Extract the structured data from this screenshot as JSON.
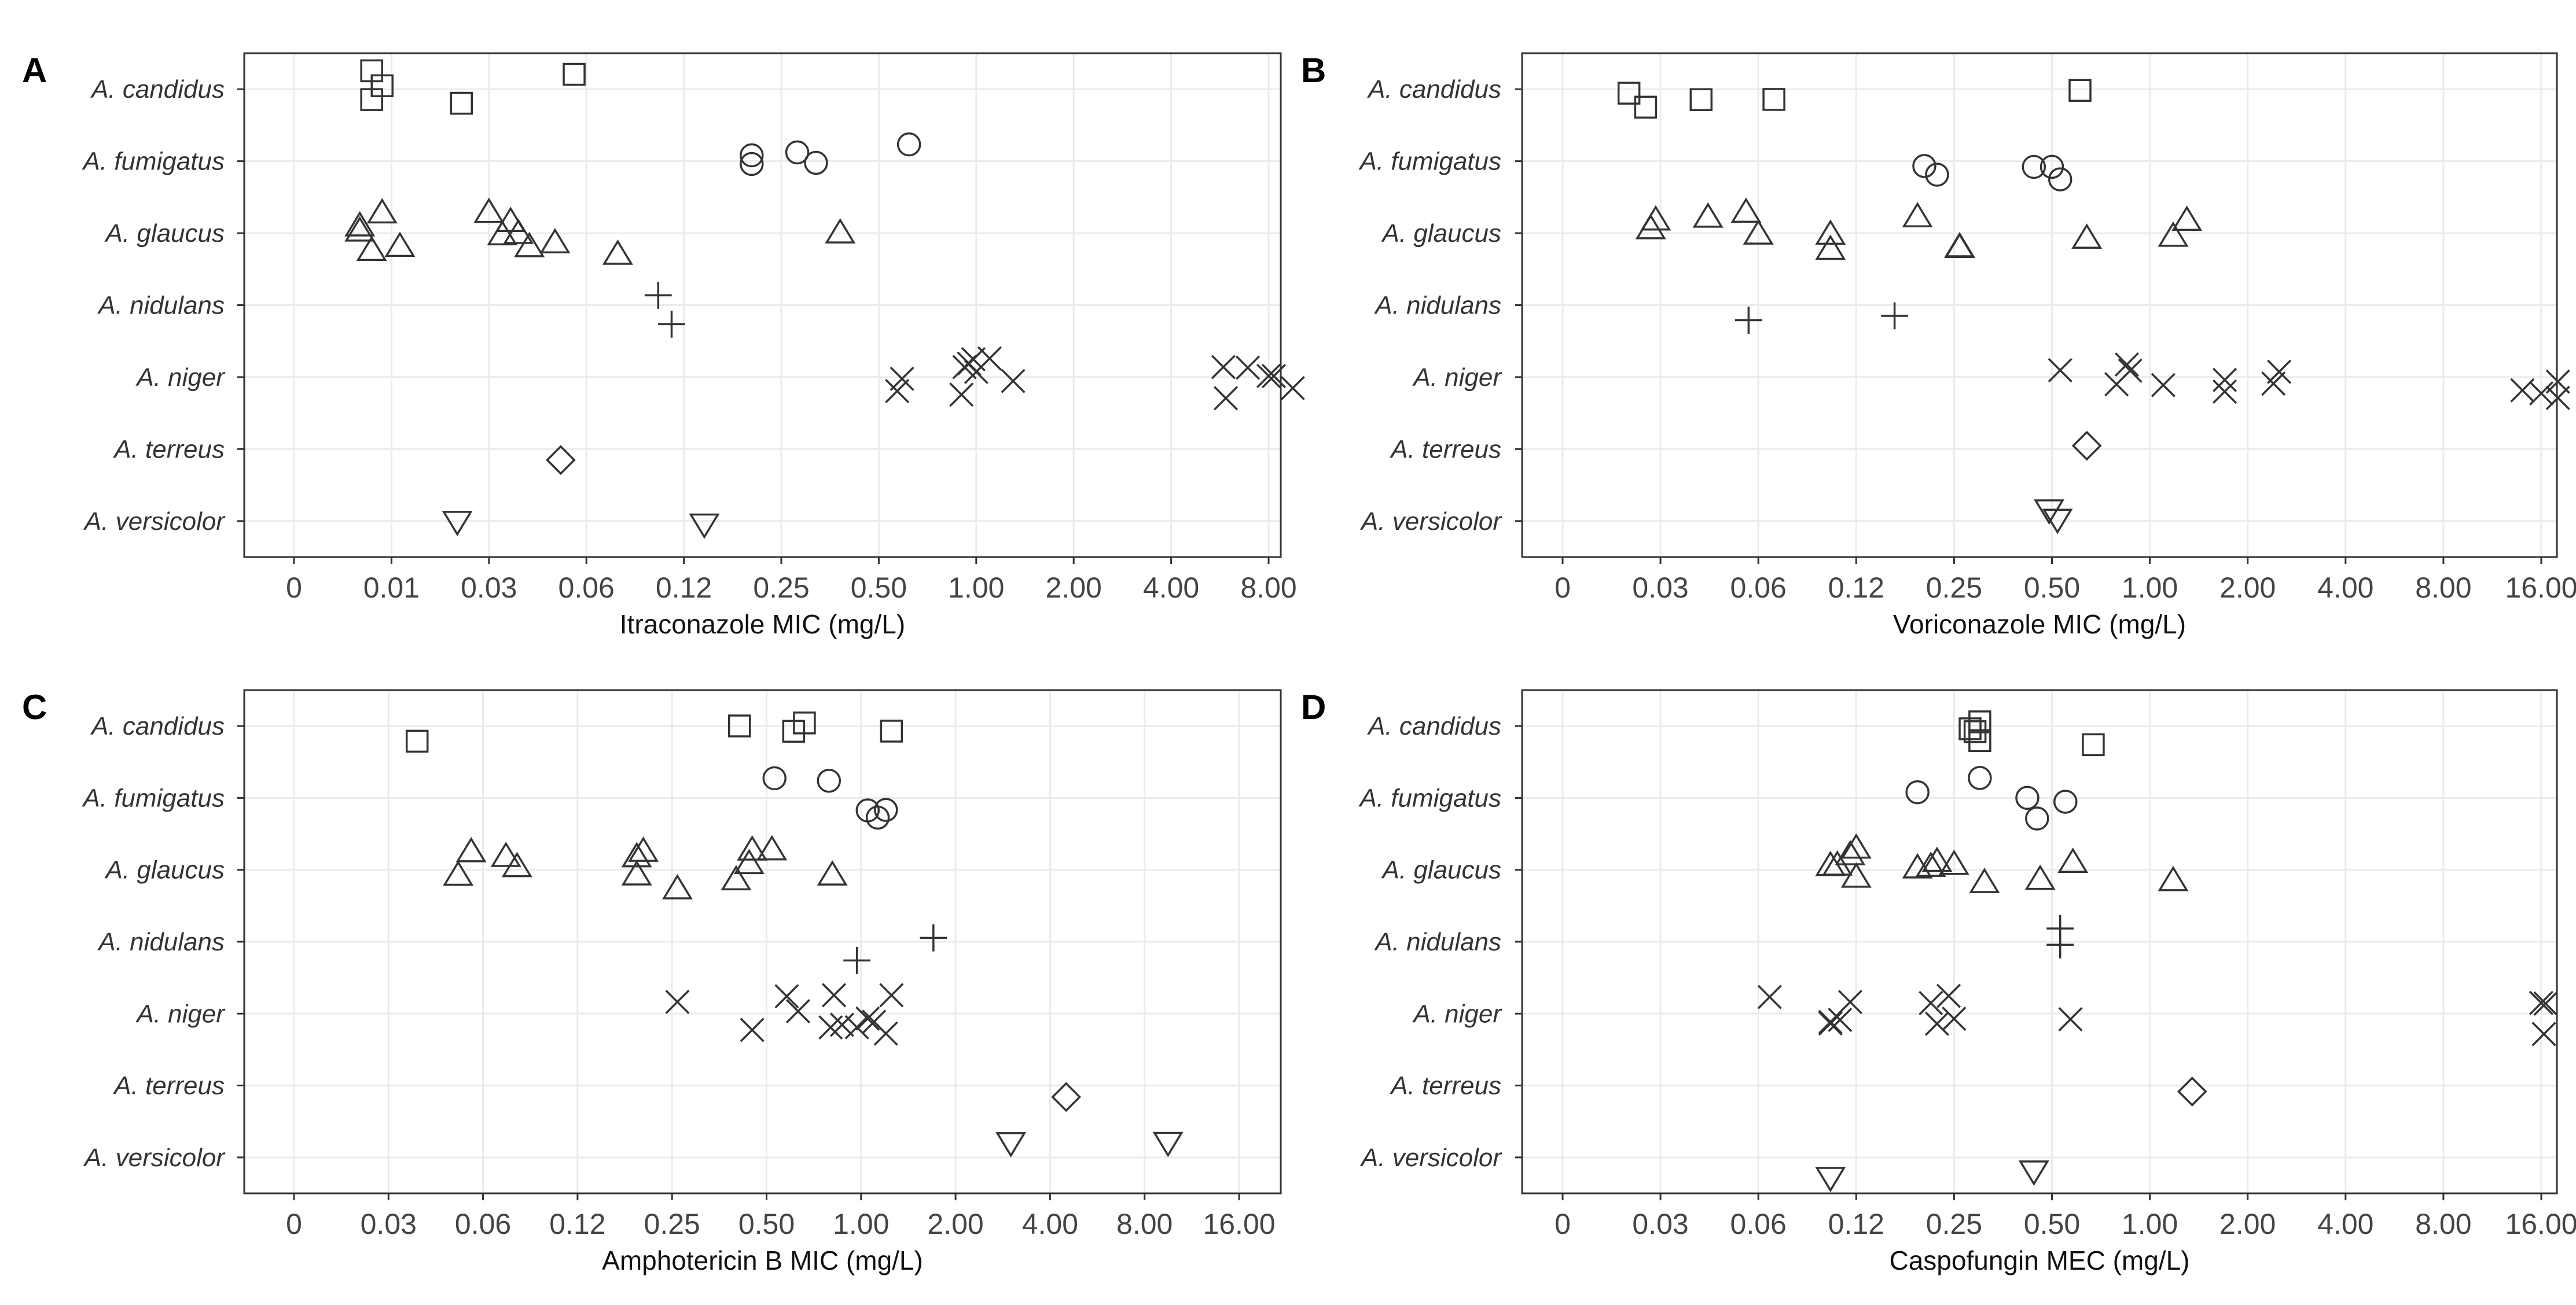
{
  "chart_data": [
    {
      "type": "scatter",
      "panel": "A",
      "xlabel": "Itraconazole MIC (mg/L)",
      "xticks": [
        "0",
        "0.01",
        "0.03",
        "0.06",
        "0.12",
        "0.25",
        "0.50",
        "1.00",
        "2.00",
        "4.00",
        "8.00"
      ],
      "species": [
        "A. candidus",
        "A. fumigatus",
        "A. glaucus",
        "A. nidulans",
        "A. niger",
        "A. terreus",
        "A. versicolor"
      ],
      "points": [
        {
          "species": "A. candidus",
          "x": [
            0.008,
            0.008,
            0.009,
            0.022,
            0.055
          ]
        },
        {
          "species": "A. fumigatus",
          "x": [
            0.2,
            0.2,
            0.28,
            0.32,
            0.62
          ]
        },
        {
          "species": "A. glaucus",
          "x": [
            0.007,
            0.007,
            0.008,
            0.009,
            0.011,
            0.03,
            0.033,
            0.035,
            0.037,
            0.04,
            0.048,
            0.075,
            0.38
          ]
        },
        {
          "species": "A. nidulans",
          "x": [
            0.1,
            0.11
          ]
        },
        {
          "species": "A. niger",
          "x": [
            0.57,
            0.59,
            0.9,
            0.92,
            0.95,
            0.98,
            1.0,
            1.1,
            1.3,
            5.8,
            5.9,
            6.9,
            8.0,
            8.3,
            9.5
          ]
        },
        {
          "species": "A. terreus",
          "x": [
            0.05
          ]
        },
        {
          "species": "A. versicolor",
          "x": [
            0.021,
            0.14
          ]
        }
      ]
    },
    {
      "type": "scatter",
      "panel": "B",
      "xlabel": "Voriconazole MIC (mg/L)",
      "xticks": [
        "0",
        "0.03",
        "0.06",
        "0.12",
        "0.25",
        "0.50",
        "1.00",
        "2.00",
        "4.00",
        "8.00",
        "16.00"
      ],
      "species": [
        "A. candidus",
        "A. fumigatus",
        "A. glaucus",
        "A. nidulans",
        "A. niger",
        "A. terreus",
        "A. versicolor"
      ],
      "points": [
        {
          "species": "A. candidus",
          "x": [
            0.024,
            0.027,
            0.04,
            0.067,
            0.61
          ]
        },
        {
          "species": "A. fumigatus",
          "x": [
            0.2,
            0.22,
            0.44,
            0.5,
            0.53
          ]
        },
        {
          "species": "A. glaucus",
          "x": [
            0.028,
            0.029,
            0.042,
            0.055,
            0.06,
            0.1,
            0.1,
            0.19,
            0.26,
            0.26,
            0.64,
            1.18,
            1.3
          ]
        },
        {
          "species": "A. nidulans",
          "x": [
            0.056,
            0.16
          ]
        },
        {
          "species": "A. niger",
          "x": [
            0.53,
            0.79,
            0.85,
            0.87,
            1.1,
            1.7,
            1.7,
            2.4,
            2.5,
            14.0,
            16.0,
            18.0,
            18.0
          ]
        },
        {
          "species": "A. terreus",
          "x": [
            0.64
          ]
        },
        {
          "species": "A. versicolor",
          "x": [
            0.49,
            0.52
          ]
        }
      ]
    },
    {
      "type": "scatter",
      "panel": "C",
      "xlabel": "Amphotericin B MIC (mg/L)",
      "xticks": [
        "0",
        "0.03",
        "0.06",
        "0.12",
        "0.25",
        "0.50",
        "1.00",
        "2.00",
        "4.00",
        "8.00",
        "16.00"
      ],
      "species": [
        "A. candidus",
        "A. fumigatus",
        "A. glaucus",
        "A. nidulans",
        "A. niger",
        "A. terreus",
        "A. versicolor"
      ],
      "points": [
        {
          "species": "A. candidus",
          "x": [
            0.037,
            0.41,
            0.61,
            0.66,
            1.25
          ]
        },
        {
          "species": "A. fumigatus",
          "x": [
            0.53,
            0.79,
            1.05,
            1.13,
            1.2
          ]
        },
        {
          "species": "A. glaucus",
          "x": [
            0.05,
            0.055,
            0.071,
            0.077,
            0.19,
            0.19,
            0.2,
            0.26,
            0.4,
            0.44,
            0.45,
            0.52,
            0.81
          ]
        },
        {
          "species": "A. nidulans",
          "x": [
            0.97,
            1.7
          ]
        },
        {
          "species": "A. niger",
          "x": [
            0.26,
            0.45,
            0.58,
            0.63,
            0.8,
            0.82,
            0.87,
            0.97,
            1.05,
            1.1,
            1.2,
            1.25
          ]
        },
        {
          "species": "A. terreus",
          "x": [
            4.5
          ]
        },
        {
          "species": "A. versicolor",
          "x": [
            3.0,
            9.5
          ]
        }
      ]
    },
    {
      "type": "scatter",
      "panel": "D",
      "xlabel": "Caspofungin MEC (mg/L)",
      "xticks": [
        "0",
        "0.03",
        "0.06",
        "0.12",
        "0.25",
        "0.50",
        "1.00",
        "2.00",
        "4.00",
        "8.00",
        "16.00"
      ],
      "species": [
        "A. candidus",
        "A. fumigatus",
        "A. glaucus",
        "A. nidulans",
        "A. niger",
        "A. terreus",
        "A. versicolor"
      ],
      "points": [
        {
          "species": "A. candidus",
          "x": [
            0.28,
            0.29,
            0.3,
            0.3,
            0.67
          ]
        },
        {
          "species": "A. fumigatus",
          "x": [
            0.19,
            0.3,
            0.42,
            0.45,
            0.55
          ]
        },
        {
          "species": "A. glaucus",
          "x": [
            0.1,
            0.105,
            0.115,
            0.12,
            0.12,
            0.19,
            0.21,
            0.22,
            0.25,
            0.31,
            0.46,
            0.58,
            1.18
          ]
        },
        {
          "species": "A. nidulans",
          "x": [
            0.53,
            0.53
          ]
        },
        {
          "species": "A. niger",
          "x": [
            0.065,
            0.1,
            0.1,
            0.107,
            0.115,
            0.21,
            0.22,
            0.24,
            0.25,
            0.57,
            16.0,
            16.3,
            16.5
          ]
        },
        {
          "species": "A. terreus",
          "x": [
            1.35
          ]
        },
        {
          "species": "A. versicolor",
          "x": [
            0.1,
            0.44
          ]
        }
      ]
    }
  ]
}
